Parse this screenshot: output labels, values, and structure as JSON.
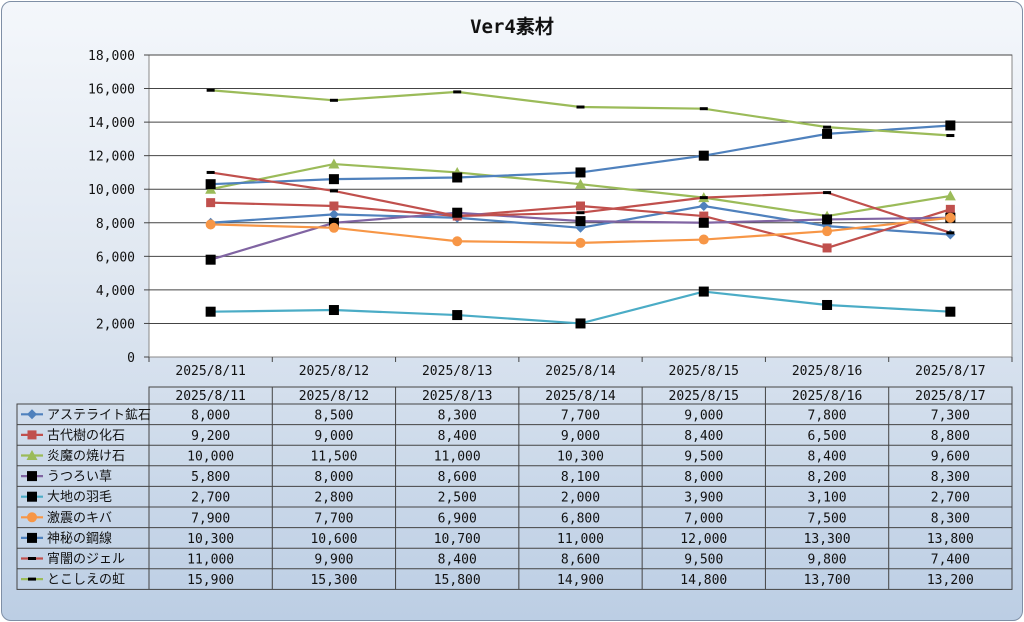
{
  "chart_data": {
    "type": "line",
    "title": "Ver4素材",
    "categories": [
      "2025/8/11",
      "2025/8/12",
      "2025/8/13",
      "2025/8/14",
      "2025/8/15",
      "2025/8/16",
      "2025/8/17"
    ],
    "y_ticks": [
      "0",
      "2,000",
      "4,000",
      "6,000",
      "8,000",
      "10,000",
      "12,000",
      "14,000",
      "16,000",
      "18,000"
    ],
    "ylim": [
      0,
      18000
    ],
    "grid": true,
    "legend": "data-table",
    "series": [
      {
        "name": "アステライト鉱石",
        "color": "#4f81bd",
        "marker": "diamond",
        "values": [
          8000,
          8500,
          8300,
          7700,
          9000,
          7800,
          7300
        ],
        "labels": [
          "8,000",
          "8,500",
          "8,300",
          "7,700",
          "9,000",
          "7,800",
          "7,300"
        ]
      },
      {
        "name": "古代樹の化石",
        "color": "#c0504d",
        "marker": "square",
        "values": [
          9200,
          9000,
          8400,
          9000,
          8400,
          6500,
          8800
        ],
        "labels": [
          "9,200",
          "9,000",
          "8,400",
          "9,000",
          "8,400",
          "6,500",
          "8,800"
        ]
      },
      {
        "name": "炎魔の焼け石",
        "color": "#9bbb59",
        "marker": "triangle",
        "values": [
          10000,
          11500,
          11000,
          10300,
          9500,
          8400,
          9600
        ],
        "labels": [
          "10,000",
          "11,500",
          "11,000",
          "10,300",
          "9,500",
          "8,400",
          "9,600"
        ]
      },
      {
        "name": "うつろい草",
        "color": "#8064a2",
        "marker": "xsquare",
        "values": [
          5800,
          8000,
          8600,
          8100,
          8000,
          8200,
          8300
        ],
        "labels": [
          "5,800",
          "8,000",
          "8,600",
          "8,100",
          "8,000",
          "8,200",
          "8,300"
        ]
      },
      {
        "name": "大地の羽毛",
        "color": "#4bacc6",
        "marker": "xsquare",
        "values": [
          2700,
          2800,
          2500,
          2000,
          3900,
          3100,
          2700
        ],
        "labels": [
          "2,700",
          "2,800",
          "2,500",
          "2,000",
          "3,900",
          "3,100",
          "2,700"
        ]
      },
      {
        "name": "激震のキバ",
        "color": "#f79646",
        "marker": "circle",
        "values": [
          7900,
          7700,
          6900,
          6800,
          7000,
          7500,
          8300
        ],
        "labels": [
          "7,900",
          "7,700",
          "6,900",
          "6,800",
          "7,000",
          "7,500",
          "8,300"
        ]
      },
      {
        "name": "神秘の鋼線",
        "color": "#4f81bd",
        "marker": "xsquare",
        "values": [
          10300,
          10600,
          10700,
          11000,
          12000,
          13300,
          13800
        ],
        "labels": [
          "10,300",
          "10,600",
          "10,700",
          "11,000",
          "12,000",
          "13,300",
          "13,800"
        ]
      },
      {
        "name": "宵闇のジェル",
        "color": "#c0504d",
        "marker": "dash",
        "values": [
          11000,
          9900,
          8400,
          8600,
          9500,
          9800,
          7400
        ],
        "labels": [
          "11,000",
          "9,900",
          "8,400",
          "8,600",
          "9,500",
          "9,800",
          "7,400"
        ]
      },
      {
        "name": "とこしえの虹",
        "color": "#9bbb59",
        "marker": "dash",
        "values": [
          15900,
          15300,
          15800,
          14900,
          14800,
          13700,
          13200
        ],
        "labels": [
          "15,900",
          "15,300",
          "15,800",
          "14,900",
          "14,800",
          "13,700",
          "13,200"
        ]
      }
    ]
  }
}
